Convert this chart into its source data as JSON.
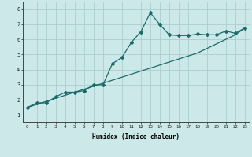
{
  "xlabel": "Humidex (Indice chaleur)",
  "ylabel": "",
  "background_color": "#cce8e8",
  "line_color": "#1a6b6b",
  "grid_color": "#aacece",
  "x_values": [
    0,
    1,
    2,
    3,
    4,
    5,
    6,
    7,
    8,
    9,
    10,
    11,
    12,
    13,
    14,
    15,
    16,
    17,
    18,
    19,
    20,
    21,
    22,
    23
  ],
  "y_curve": [
    1.5,
    1.8,
    1.8,
    2.2,
    2.5,
    2.5,
    2.6,
    3.0,
    3.0,
    4.4,
    4.8,
    5.8,
    6.5,
    7.75,
    7.0,
    6.3,
    6.25,
    6.25,
    6.35,
    6.3,
    6.3,
    6.55,
    6.4,
    6.75
  ],
  "y_line": [
    1.5,
    1.7,
    1.9,
    2.1,
    2.3,
    2.5,
    2.7,
    2.9,
    3.1,
    3.3,
    3.5,
    3.7,
    3.9,
    4.1,
    4.3,
    4.5,
    4.7,
    4.9,
    5.1,
    5.4,
    5.7,
    6.0,
    6.3,
    6.75
  ],
  "xlim": [
    -0.5,
    23.5
  ],
  "ylim": [
    0.5,
    8.5
  ],
  "yticks": [
    1,
    2,
    3,
    4,
    5,
    6,
    7,
    8
  ],
  "xticks": [
    0,
    1,
    2,
    3,
    4,
    5,
    6,
    7,
    8,
    9,
    10,
    11,
    12,
    13,
    14,
    15,
    16,
    17,
    18,
    19,
    20,
    21,
    22,
    23
  ],
  "xtick_labels": [
    "0",
    "1",
    "2",
    "3",
    "4",
    "5",
    "6",
    "7",
    "8",
    "9",
    "10",
    "11",
    "12",
    "13",
    "14",
    "15",
    "16",
    "17",
    "18",
    "19",
    "20",
    "21",
    "22",
    "23"
  ]
}
